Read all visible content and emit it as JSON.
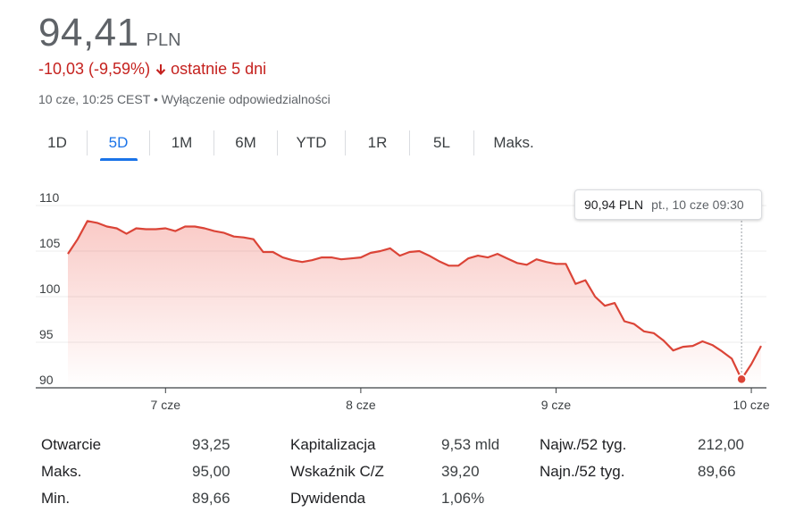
{
  "quote": {
    "price": "94,41",
    "currency": "PLN",
    "change": "-10,03 (-9,59%)",
    "change_period": "ostatnie 5 dni",
    "timestamp": "10 cze, 10:25 CEST",
    "separator": "•",
    "disclaimer": "Wyłączenie odpowiedzialności"
  },
  "colors": {
    "negative": "#c5221f",
    "line": "#db4437",
    "active_tab": "#1a73e8"
  },
  "tabs": [
    {
      "label": "1D",
      "active": false
    },
    {
      "label": "5D",
      "active": true
    },
    {
      "label": "1M",
      "active": false
    },
    {
      "label": "6M",
      "active": false
    },
    {
      "label": "YTD",
      "active": false
    },
    {
      "label": "1R",
      "active": false
    },
    {
      "label": "5L",
      "active": false
    },
    {
      "label": "Maks.",
      "active": false
    }
  ],
  "tooltip": {
    "value": "90,94 PLN",
    "date": "pt., 10 cze 09:30"
  },
  "chart_data": {
    "type": "area",
    "ylim": [
      90,
      110
    ],
    "y_ticks": [
      110,
      105,
      100,
      95,
      90
    ],
    "x_tick_labels": [
      "7 cze",
      "8 cze",
      "9 cze",
      "10 cze"
    ],
    "x_tick_positions": [
      10,
      30,
      50,
      70
    ],
    "grid": true,
    "series": [
      {
        "values": [
          104.7,
          106.3,
          108.3,
          108.1,
          107.7,
          107.5,
          106.9,
          107.5,
          107.4,
          107.4,
          107.5,
          107.2,
          107.7,
          107.7,
          107.5,
          107.2,
          107.0,
          106.6,
          106.5,
          106.3,
          104.9,
          104.9,
          104.3,
          104.0,
          103.8,
          104.0,
          104.3,
          104.3,
          104.1,
          104.2,
          104.3,
          104.8,
          105.0,
          105.3,
          104.5,
          104.9,
          105.0,
          104.5,
          103.9,
          103.4,
          103.4,
          104.2,
          104.5,
          104.3,
          104.7,
          104.2,
          103.7,
          103.5,
          104.1,
          103.8,
          103.6,
          103.6,
          101.4,
          101.8,
          100.0,
          99.0,
          99.3,
          97.3,
          97.0,
          96.2,
          96.0,
          95.2,
          94.1,
          94.5,
          94.6,
          95.1,
          94.7,
          94.0,
          93.2,
          90.94,
          92.6,
          94.6
        ]
      }
    ],
    "highlight_index": 69,
    "highlight_value": 90.94
  },
  "stats": [
    [
      {
        "label": "Otwarcie",
        "value": "93,25"
      },
      {
        "label": "Kapitalizacja",
        "value": "9,53 mld"
      },
      {
        "label": "Najw./52 tyg.",
        "value": "212,00"
      }
    ],
    [
      {
        "label": "Maks.",
        "value": "95,00"
      },
      {
        "label": "Wskaźnik C/Z",
        "value": "39,20"
      },
      {
        "label": "Najn./52 tyg.",
        "value": "89,66"
      }
    ],
    [
      {
        "label": "Min.",
        "value": "89,66"
      },
      {
        "label": "Dywidenda",
        "value": "1,06%"
      },
      {
        "label": "",
        "value": ""
      }
    ]
  ]
}
